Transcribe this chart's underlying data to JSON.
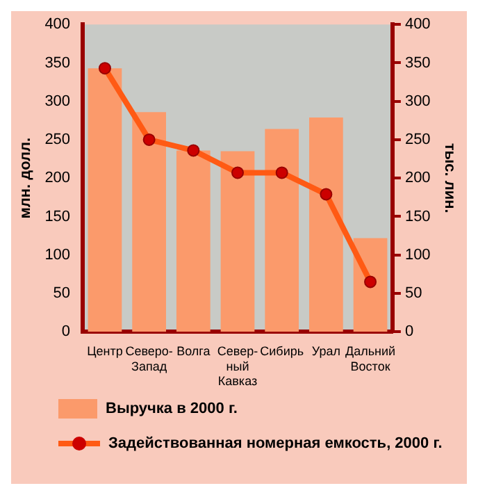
{
  "chart_data": {
    "type": "bar",
    "categories": [
      "Центр",
      "Северо-Запад",
      "Волга",
      "Север-ный Кавказ",
      "Сибирь",
      "Урал",
      "Дальний Восток"
    ],
    "series": [
      {
        "name": "Выручка в 2000 г.",
        "color": "#fb9a6b",
        "values": [
          343,
          286,
          236,
          235,
          264,
          279,
          122
        ]
      },
      {
        "name": "Задействованная номерная емкость, 2000 г.",
        "type": "line",
        "axis": "y2",
        "color": "#ff5a14",
        "values": [
          343,
          250,
          236,
          207,
          207,
          179,
          65
        ]
      }
    ],
    "ylabel": "млн. долл.",
    "y2label": "тыс. лин.",
    "ylim": [
      0,
      400
    ],
    "yticks": [
      0,
      50,
      100,
      150,
      200,
      250,
      300,
      350,
      400
    ],
    "y2lim": [
      0,
      400
    ],
    "y2ticks": [
      0,
      50,
      100,
      150,
      200,
      250,
      300,
      350,
      400
    ],
    "grid": false,
    "legend": "bottom",
    "marker": "circle",
    "line_style": "solid"
  }
}
